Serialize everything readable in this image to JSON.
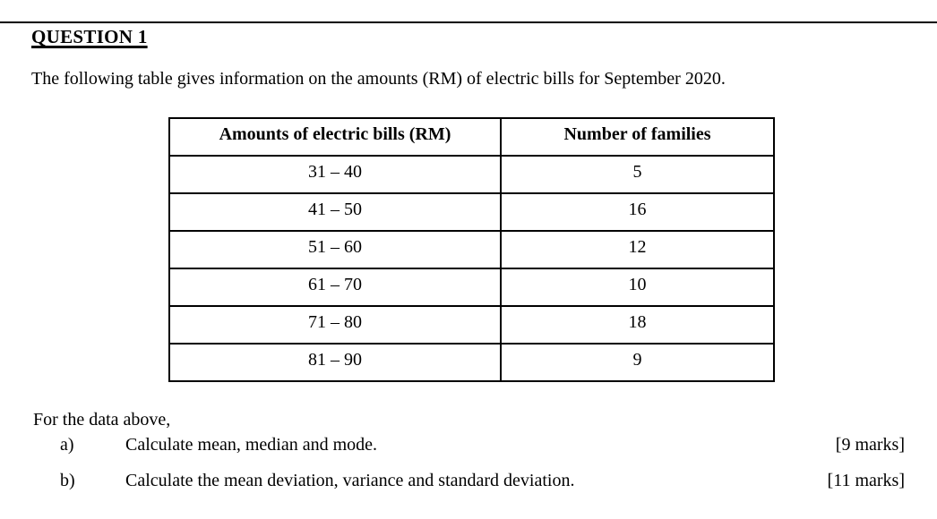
{
  "colors": {
    "text": "#000000",
    "background": "#ffffff",
    "rule": "#000000"
  },
  "document": {
    "heading": "QUESTION 1",
    "intro": "The following table gives information on the amounts (RM) of electric bills for September 2020.",
    "table": {
      "col1_header": "Amounts of electric bills (RM)",
      "col2_header": "Number of families",
      "rows": [
        {
          "bills": "31 – 40",
          "families": "5"
        },
        {
          "bills": "41 – 50",
          "families": "16"
        },
        {
          "bills": "51 – 60",
          "families": "12"
        },
        {
          "bills": "61 – 70",
          "families": "10"
        },
        {
          "bills": "71 – 80",
          "families": "18"
        },
        {
          "bills": "81 – 90",
          "families": "9"
        }
      ]
    },
    "lead_in": "For the data above,",
    "parts": [
      {
        "label": "a)",
        "text": "Calculate mean, median and mode.",
        "marks": "[9 marks]"
      },
      {
        "label": "b)",
        "text": "Calculate the mean deviation, variance and standard deviation.",
        "marks": "[11 marks]"
      }
    ]
  }
}
